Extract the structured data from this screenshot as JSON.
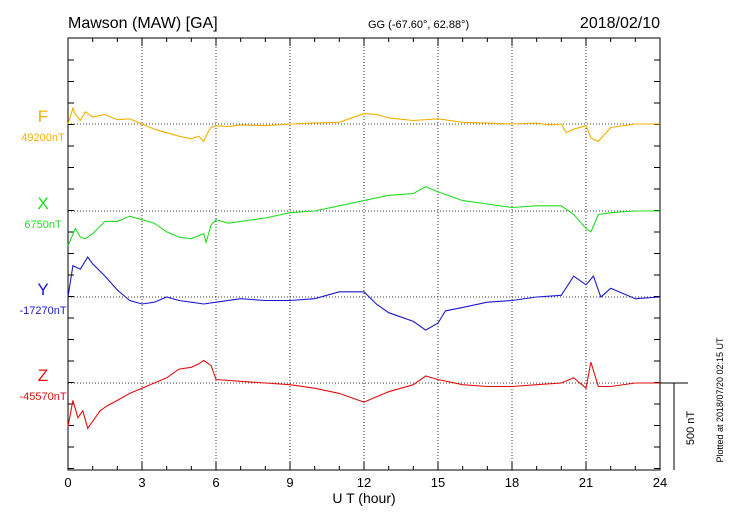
{
  "header": {
    "station": "Mawson (MAW)  [GA]",
    "coords": "GG (-67.60°,  62.88°)",
    "date": "2018/02/10"
  },
  "plotted_note": "Plotted at 2018/07/20 02:15 UT",
  "scale_label": "500 nT",
  "colors": {
    "F": "#f0b000",
    "X": "#22dd22",
    "Y": "#1a1acc",
    "Z": "#e01010"
  },
  "chart_data": {
    "type": "line",
    "xlabel": "U T (hour)",
    "xlim": [
      0,
      24
    ],
    "x_ticks": [
      "0",
      "3",
      "6",
      "9",
      "12",
      "15",
      "18",
      "21",
      "24"
    ],
    "grid": "vertical dotted every 3 h",
    "series": [
      {
        "name": "F",
        "baseline_label": "49200nT",
        "x": [
          0,
          0.2,
          0.3,
          0.5,
          0.7,
          1,
          1.5,
          2,
          2.5,
          3,
          3.5,
          4,
          4.5,
          5,
          5.3,
          5.5,
          5.7,
          5.8,
          6,
          6.5,
          7,
          8,
          9,
          10,
          11,
          12,
          12.5,
          13,
          14,
          15,
          16,
          17,
          18,
          19,
          19.5,
          20,
          20.2,
          20.5,
          21,
          21.2,
          21.5,
          22,
          23,
          24
        ],
        "y": [
          0,
          90,
          55,
          20,
          70,
          40,
          55,
          25,
          30,
          0,
          -30,
          -50,
          -70,
          -85,
          -70,
          -100,
          -40,
          -20,
          -10,
          -15,
          -5,
          -10,
          0,
          5,
          10,
          60,
          55,
          35,
          20,
          30,
          10,
          5,
          0,
          5,
          -5,
          0,
          -50,
          -30,
          -10,
          -80,
          -100,
          -20,
          0,
          0
        ]
      },
      {
        "name": "X",
        "baseline_label": "6750nT",
        "x": [
          0,
          0.3,
          0.5,
          0.7,
          1,
          1.5,
          2,
          2.5,
          3,
          3.5,
          4,
          4.5,
          5,
          5.5,
          5.6,
          5.8,
          6,
          6.5,
          7,
          8,
          9,
          10,
          11,
          12,
          13,
          14,
          14.5,
          15,
          16,
          17,
          18,
          19,
          20,
          20.5,
          21,
          21.2,
          21.5,
          22,
          23,
          24
        ],
        "y": [
          -200,
          -100,
          -150,
          -160,
          -130,
          -60,
          -60,
          -30,
          -50,
          -70,
          -120,
          -150,
          -160,
          -130,
          -180,
          -80,
          -50,
          -70,
          -60,
          -40,
          -10,
          0,
          30,
          60,
          90,
          100,
          140,
          110,
          60,
          40,
          20,
          30,
          30,
          -20,
          -100,
          -120,
          -20,
          -10,
          0,
          0
        ]
      },
      {
        "name": "Y",
        "baseline_label": "-17270nT",
        "x": [
          0,
          0.2,
          0.5,
          0.8,
          1,
          1.5,
          2,
          2.5,
          3,
          3.5,
          4,
          4.5,
          5,
          5.5,
          6,
          7,
          8,
          9,
          10,
          11,
          12,
          12.5,
          13,
          14,
          14.5,
          15,
          15.3,
          16,
          17,
          18,
          19,
          20,
          20.5,
          21,
          21.3,
          21.6,
          22,
          23,
          24
        ],
        "y": [
          0,
          180,
          160,
          230,
          190,
          120,
          40,
          -20,
          -40,
          -30,
          0,
          -20,
          -30,
          -40,
          -30,
          -10,
          -20,
          -20,
          -10,
          30,
          30,
          -40,
          -90,
          -140,
          -190,
          -150,
          -80,
          -60,
          -30,
          -20,
          0,
          10,
          120,
          70,
          120,
          0,
          50,
          -10,
          0
        ]
      },
      {
        "name": "Z",
        "baseline_label": "-45570nT",
        "x": [
          0,
          0.2,
          0.4,
          0.6,
          0.8,
          1,
          1.3,
          1.6,
          2,
          2.5,
          3,
          3.5,
          4,
          4.5,
          5,
          5.3,
          5.5,
          5.8,
          6,
          7,
          8,
          9,
          10,
          11,
          12,
          12.5,
          13,
          14,
          14.5,
          15,
          16,
          17,
          18,
          19,
          20,
          20.5,
          21,
          21.2,
          21.5,
          22,
          23,
          24
        ],
        "y": [
          -250,
          -100,
          -200,
          -160,
          -260,
          -220,
          -160,
          -130,
          -100,
          -60,
          -30,
          0,
          30,
          80,
          90,
          110,
          130,
          100,
          20,
          10,
          0,
          -10,
          -30,
          -60,
          -110,
          -80,
          -50,
          -10,
          40,
          20,
          -10,
          -20,
          -20,
          -10,
          0,
          30,
          -30,
          120,
          -20,
          -20,
          0,
          0
        ]
      }
    ],
    "scale_bar_nT": 500
  }
}
